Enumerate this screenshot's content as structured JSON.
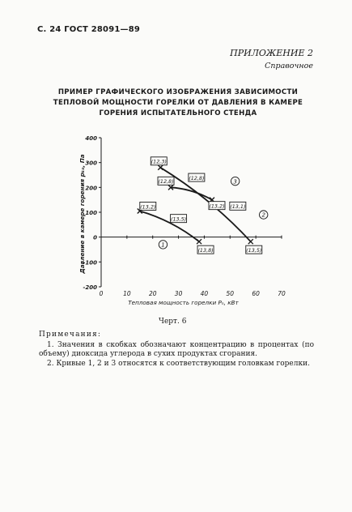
{
  "header": "С. 24 ГОСТ 28091—89",
  "appendix": {
    "label": "ПРИЛОЖЕНИЕ 2",
    "sub": "Справочное"
  },
  "title": {
    "lines": [
      "ПРИМЕР ГРАФИЧЕСКОГО ИЗОБРАЖЕНИЯ ЗАВИСИМОСТИ",
      "ТЕПЛОВОЙ МОЩНОСТИ ГОРЕЛКИ ОТ ДАВЛЕНИЯ В КАМЕРЕ",
      "ГОРЕНИЯ ИСПЫТАТЕЛЬНОГО СТЕНДА"
    ]
  },
  "chart_data": {
    "type": "line",
    "xlabel": "Тепловая мощность горелки Pₙ, кВт",
    "ylabel": "Давление в камере горения pₖₙ, Па",
    "xlim": [
      0,
      70
    ],
    "ylim": [
      -200,
      400
    ],
    "x_ticks": [
      "0",
      "10",
      "20",
      "30",
      "40",
      "50",
      "60",
      "70"
    ],
    "y_ticks": [
      "400",
      "300",
      "200",
      "100",
      "0",
      "-100",
      "-200"
    ],
    "grid": false,
    "series": [
      {
        "name": "1",
        "color": "#1a1a1a",
        "points": [
          {
            "x": 15,
            "y": 105,
            "label": "(13,2)"
          },
          {
            "x": 38,
            "y": -18,
            "label": "(13,8)"
          }
        ]
      },
      {
        "name": "2",
        "color": "#1a1a1a",
        "points": [
          {
            "x": 23,
            "y": 280,
            "label": "(12,3)"
          },
          {
            "x": 58,
            "y": -18,
            "label": "(13,5)"
          }
        ]
      },
      {
        "name": "3",
        "color": "#1a1a1a",
        "points": [
          {
            "x": 27,
            "y": 200,
            "label": "(12,8)"
          },
          {
            "x": 43,
            "y": 150,
            "label": "(13,2)"
          }
        ]
      }
    ],
    "annotations": [
      {
        "text": "(12,8)",
        "x": 37,
        "y": 240
      },
      {
        "text": "(13,5)",
        "x": 30,
        "y": 75
      },
      {
        "text": "(13,1)",
        "x": 53,
        "y": 125
      }
    ],
    "curve_labels": [
      {
        "text": "1",
        "x": 24,
        "y": -30
      },
      {
        "text": "2",
        "x": 63,
        "y": 90
      },
      {
        "text": "3",
        "x": 52,
        "y": 225
      }
    ]
  },
  "caption": "Черт. 6",
  "notes": {
    "heading": "Примечания:",
    "items": [
      "1. Значения в скобках обозначают концентрацию в процентах (по объему) диоксида углерода в сухих продуктах сгорания.",
      "2. Кривые 1, 2 и 3 относятся к соответствующим головкам горелки."
    ]
  }
}
